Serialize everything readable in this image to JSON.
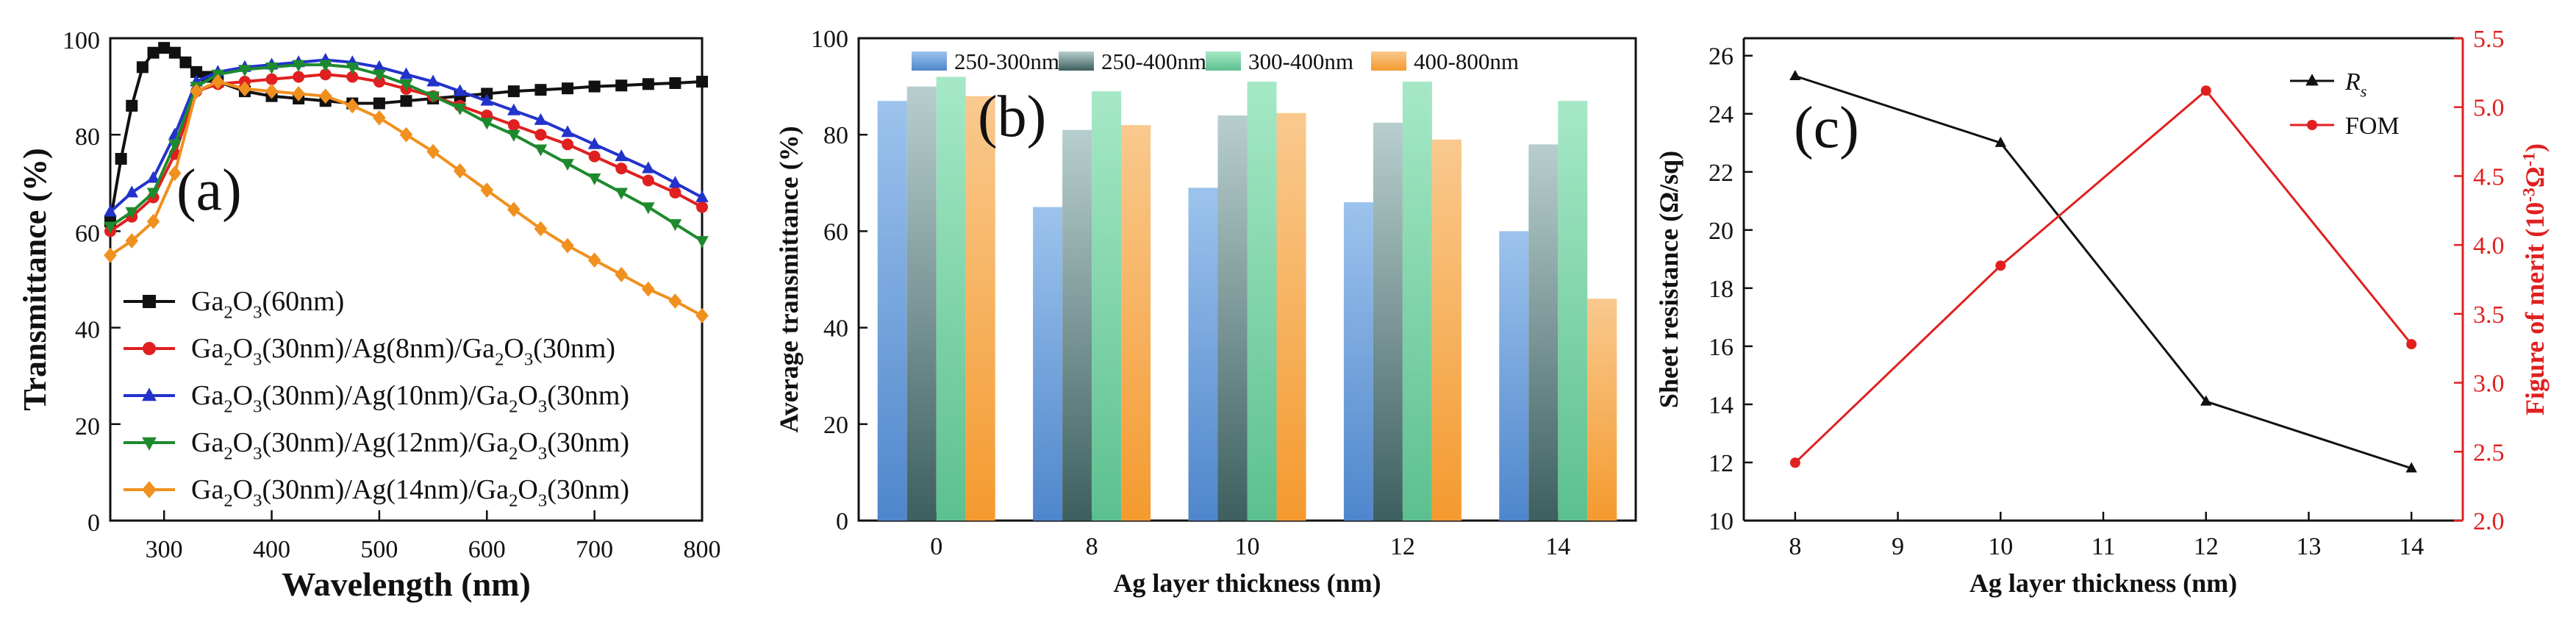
{
  "chart_data": [
    {
      "panel": "(a)",
      "type": "line",
      "xlabel": "Wavelength (nm)",
      "ylabel": "Transmittance (%)",
      "xlim": [
        250,
        800
      ],
      "ylim": [
        0,
        100
      ],
      "xticks": [
        300,
        400,
        500,
        600,
        700,
        800
      ],
      "yticks": [
        0,
        20,
        40,
        60,
        80,
        100
      ],
      "series": [
        {
          "name": "Ga2O3(60nm)",
          "label_parts": [
            "Ga",
            "2",
            "O",
            "3",
            "(60nm)"
          ],
          "color": "#111111",
          "marker": "square",
          "x": [
            250,
            260,
            270,
            280,
            290,
            300,
            310,
            320,
            330,
            340,
            350,
            375,
            400,
            425,
            450,
            475,
            500,
            525,
            550,
            575,
            600,
            625,
            650,
            675,
            700,
            725,
            750,
            775,
            800
          ],
          "y": [
            62,
            75,
            86,
            94,
            97,
            98,
            97,
            95,
            93,
            92,
            91,
            89,
            88,
            87.5,
            87,
            86.5,
            86.5,
            87,
            87.5,
            88,
            88.5,
            89,
            89.3,
            89.6,
            90,
            90.2,
            90.5,
            90.7,
            91
          ]
        },
        {
          "name": "Ga2O3(30nm)/Ag(8nm)/Ga2O3(30nm)",
          "label_parts": [
            "Ga",
            "2",
            "O",
            "3",
            "(30nm)/Ag(8nm)/Ga",
            "2",
            "O",
            "3",
            "(30nm)"
          ],
          "color": "#e02020",
          "marker": "circle",
          "x": [
            250,
            270,
            290,
            310,
            330,
            350,
            375,
            400,
            425,
            450,
            475,
            500,
            525,
            550,
            575,
            600,
            625,
            650,
            675,
            700,
            725,
            750,
            775,
            800
          ],
          "y": [
            60,
            63,
            67,
            76,
            89,
            90.5,
            91,
            91.5,
            92,
            92.5,
            92,
            91,
            89.5,
            88,
            86,
            84,
            82,
            80,
            78,
            75.5,
            73,
            70.5,
            68,
            65
          ]
        },
        {
          "name": "Ga2O3(30nm)/Ag(10nm)/Ga2O3(30nm)",
          "label_parts": [
            "Ga",
            "2",
            "O",
            "3",
            "(30nm)/Ag(10nm)/Ga",
            "2",
            "O",
            "3",
            "(30nm)"
          ],
          "color": "#2233cc",
          "marker": "triangle",
          "x": [
            250,
            270,
            290,
            310,
            330,
            350,
            375,
            400,
            425,
            450,
            475,
            500,
            525,
            550,
            575,
            600,
            625,
            650,
            675,
            700,
            725,
            750,
            775,
            800
          ],
          "y": [
            64,
            68,
            71,
            80,
            91,
            93,
            94,
            94.5,
            95,
            95.5,
            95,
            94,
            92.5,
            91,
            89,
            87,
            85,
            83,
            80.5,
            78,
            75.5,
            73,
            70,
            67
          ]
        },
        {
          "name": "Ga2O3(30nm)/Ag(12nm)/Ga2O3(30nm)",
          "label_parts": [
            "Ga",
            "2",
            "O",
            "3",
            "(30nm)/Ag(12nm)/Ga",
            "2",
            "O",
            "3",
            "(30nm)"
          ],
          "color": "#1e8a2e",
          "marker": "triangle-down",
          "x": [
            250,
            270,
            290,
            310,
            330,
            350,
            375,
            400,
            425,
            450,
            475,
            500,
            525,
            550,
            575,
            600,
            625,
            650,
            675,
            700,
            725,
            750,
            775,
            800
          ],
          "y": [
            61,
            64,
            68,
            78,
            90,
            92.5,
            93.5,
            94,
            94.5,
            94.5,
            94,
            92.5,
            90.5,
            88,
            85.5,
            82.5,
            80,
            77,
            74,
            71,
            68,
            65,
            61.5,
            58
          ]
        },
        {
          "name": "Ga2O3(30nm)/Ag(14nm)/Ga2O3(30nm)",
          "label_parts": [
            "Ga",
            "2",
            "O",
            "3",
            "(30nm)/Ag(14nm)/Ga",
            "2",
            "O",
            "3",
            "(30nm)"
          ],
          "color": "#f0901e",
          "marker": "diamond",
          "x": [
            250,
            270,
            290,
            310,
            330,
            350,
            375,
            400,
            425,
            450,
            475,
            500,
            525,
            550,
            575,
            600,
            625,
            650,
            675,
            700,
            725,
            750,
            775,
            800
          ],
          "y": [
            55,
            58,
            62,
            72,
            89,
            91,
            89.5,
            89,
            88.5,
            88,
            86,
            83.5,
            80,
            76.5,
            72.5,
            68.5,
            64.5,
            60.5,
            57,
            54,
            51,
            48,
            45.5,
            42.5
          ]
        }
      ]
    },
    {
      "panel": "(b)",
      "type": "bar",
      "xlabel": "Ag layer thickness (nm)",
      "ylabel": "Average transmittance (%)",
      "ylim": [
        0,
        100
      ],
      "yticks": [
        0,
        20,
        40,
        60,
        80,
        100
      ],
      "categories": [
        "0",
        "8",
        "10",
        "12",
        "14"
      ],
      "series": [
        {
          "name": "250-300nm",
          "color_top": "#9cc3ec",
          "color_bottom": "#4f86cc",
          "values": [
            87,
            65,
            69,
            66,
            60
          ]
        },
        {
          "name": "250-400nm",
          "color_top": "#b8cece",
          "color_bottom": "#3e5f5f",
          "values": [
            90,
            81,
            84,
            82.5,
            78
          ]
        },
        {
          "name": "300-400nm",
          "color_top": "#a6e8c6",
          "color_bottom": "#5cc08e",
          "values": [
            92,
            89,
            91,
            91,
            87
          ]
        },
        {
          "name": "400-800nm",
          "color_top": "#f9c98e",
          "color_bottom": "#f49a2f",
          "values": [
            88,
            82,
            84.5,
            79,
            46
          ]
        }
      ]
    },
    {
      "panel": "(c)",
      "type": "line",
      "xlabel": "Ag layer thickness (nm)",
      "ylabel": "Sheet resistance (Ω/sq)",
      "ylabel_right": "Figure of merit (10-3Ω-1)",
      "ylabel_right_parts": [
        "Figure of merit (10",
        "-3",
        "Ω",
        "-1",
        ")"
      ],
      "xlim": [
        7.5,
        14.5
      ],
      "xticks": [
        8,
        9,
        10,
        11,
        12,
        13,
        14
      ],
      "ylim": [
        10,
        26.6
      ],
      "yticks": [
        10,
        12,
        14,
        16,
        18,
        20,
        22,
        24,
        26
      ],
      "ylim_right": [
        2.0,
        5.5
      ],
      "yticks_right": [
        2.0,
        2.5,
        3.0,
        3.5,
        4.0,
        4.5,
        5.0,
        5.5
      ],
      "series": [
        {
          "name": "Rs",
          "label_main": "R",
          "label_sub": "s",
          "axis": "left",
          "color": "#111111",
          "marker": "triangle",
          "x": [
            8,
            10,
            12,
            14
          ],
          "y": [
            25.3,
            23.0,
            14.1,
            11.8
          ]
        },
        {
          "name": "FOM",
          "axis": "right",
          "color": "#e02020",
          "marker": "circle",
          "x": [
            8,
            10,
            12,
            14
          ],
          "y": [
            2.42,
            3.85,
            5.12,
            3.28
          ]
        }
      ]
    }
  ]
}
